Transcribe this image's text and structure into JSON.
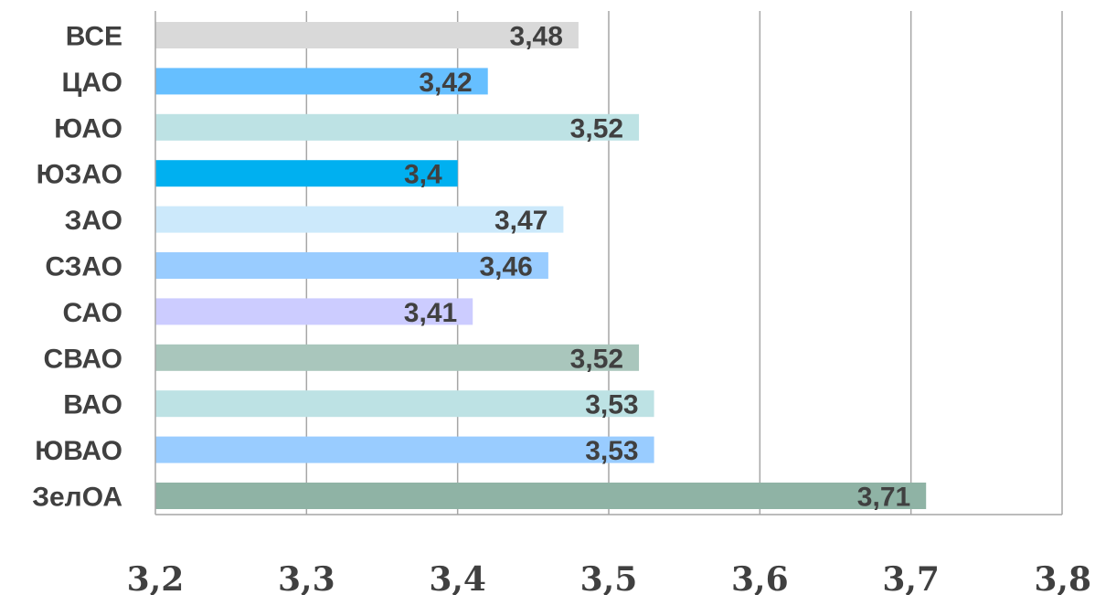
{
  "chart_data": {
    "type": "bar",
    "orientation": "horizontal",
    "categories": [
      "ВСЕ",
      "ЦАО",
      "ЮАО",
      "ЮЗАО",
      "ЗАО",
      "СЗАО",
      "САО",
      "СВАО",
      "ВАО",
      "ЮВАО",
      "ЗелОА"
    ],
    "values": [
      3.48,
      3.42,
      3.52,
      3.4,
      3.47,
      3.46,
      3.41,
      3.52,
      3.53,
      3.53,
      3.71
    ],
    "value_labels": [
      "3,48",
      "3,42",
      "3,52",
      "3,4",
      "3,47",
      "3,46",
      "3,41",
      "3,52",
      "3,53",
      "3,53",
      "3,71"
    ],
    "colors": [
      "#d9d9d9",
      "#66bfff",
      "#bde2e4",
      "#00b0f0",
      "#cce9fb",
      "#99ccff",
      "#ccccff",
      "#a9c6bc",
      "#bde2e4",
      "#99ccff",
      "#8fb3a5"
    ],
    "xlim": [
      3.2,
      3.8
    ],
    "xticks": [
      3.2,
      3.3,
      3.4,
      3.5,
      3.6,
      3.7,
      3.8
    ],
    "xtick_labels": [
      "3,2",
      "3,3",
      "3,4",
      "3,5",
      "3,6",
      "3,7",
      "3,8"
    ],
    "grid": true,
    "title": "",
    "xlabel": "",
    "ylabel": ""
  }
}
